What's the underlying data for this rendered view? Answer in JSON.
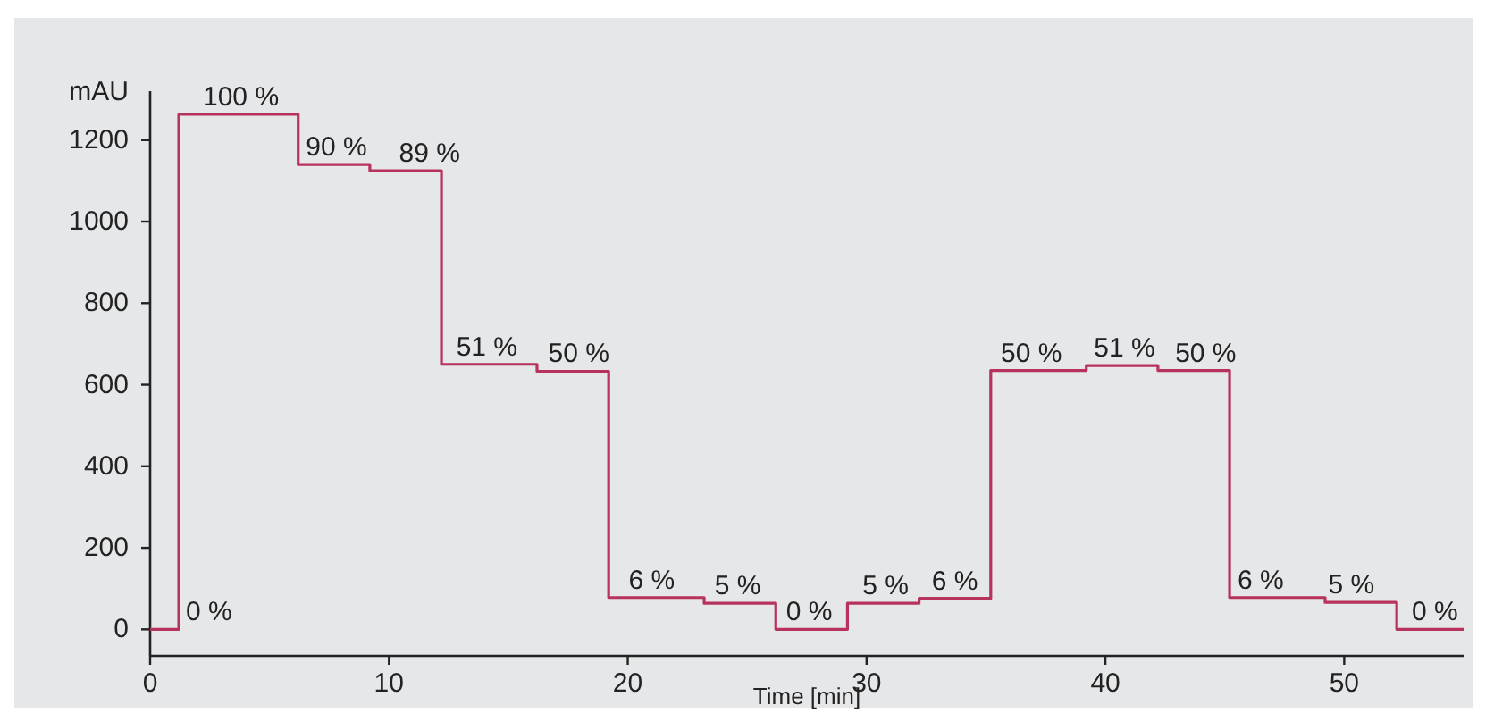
{
  "chart_data": {
    "type": "step",
    "xlabel": "Time [min]",
    "ylabel": "mAU",
    "x": [
      0,
      1.2,
      6.2,
      9.2,
      12.2,
      16.2,
      19.2,
      23.2,
      26.2,
      29.2,
      32.2,
      35.2,
      39.2,
      42.2,
      45.2,
      49.2,
      52.2,
      55
    ],
    "series": [
      {
        "color": "#b8325e",
        "values": [
          0,
          1263,
          1140,
          1125,
          650,
          633,
          78,
          64,
          0,
          64,
          76,
          635,
          647,
          635,
          78,
          66,
          0,
          0
        ]
      }
    ],
    "xlim": [
      0,
      55
    ],
    "xticks": [
      0,
      10,
      20,
      30,
      40,
      50
    ],
    "ylim": [
      -65,
      1320
    ],
    "yticks": [
      0,
      200,
      400,
      600,
      800,
      1000,
      1200
    ],
    "grid": false,
    "annotations": [
      {
        "text": "0 %",
        "x": 1.1,
        "y": 0
      },
      {
        "text": "100 %",
        "x": 3.8,
        "y": 1263
      },
      {
        "text": "90 %",
        "x": 7.8,
        "y": 1140
      },
      {
        "text": "89 %",
        "x": 11.7,
        "y": 1125
      },
      {
        "text": "51 %",
        "x": 14.1,
        "y": 650
      },
      {
        "text": "50 %",
        "x": 17.95,
        "y": 633
      },
      {
        "text": "6 %",
        "x": 21.0,
        "y": 78
      },
      {
        "text": "5 %",
        "x": 24.6,
        "y": 64
      },
      {
        "text": "0 %",
        "x": 27.6,
        "y": 0
      },
      {
        "text": "5 %",
        "x": 30.8,
        "y": 64
      },
      {
        "text": "6 %",
        "x": 33.7,
        "y": 76
      },
      {
        "text": "50 %",
        "x": 36.9,
        "y": 635
      },
      {
        "text": "51 %",
        "x": 40.8,
        "y": 647
      },
      {
        "text": "50 %",
        "x": 44.2,
        "y": 635
      },
      {
        "text": "6 %",
        "x": 46.5,
        "y": 78
      },
      {
        "text": "5 %",
        "x": 50.3,
        "y": 66
      },
      {
        "text": "0 %",
        "x": 53.8,
        "y": 0
      }
    ]
  }
}
